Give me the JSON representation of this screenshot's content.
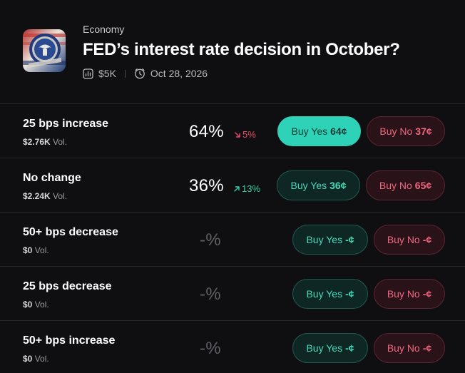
{
  "market": {
    "category": "Economy",
    "title": "FED’s interest rate decision in October?",
    "volume": "$5K",
    "date": "Oct 28, 2026"
  },
  "outcomes": [
    {
      "name": "25 bps increase",
      "volume": "$2.76K",
      "vol_suffix": "Vol.",
      "percent": "64%",
      "change": "5%",
      "change_dir": "down",
      "yes_label": "Buy Yes",
      "yes_price": "64¢",
      "no_label": "Buy No",
      "no_price": "37¢",
      "yes_active": true
    },
    {
      "name": "No change",
      "volume": "$2.24K",
      "vol_suffix": "Vol.",
      "percent": "36%",
      "change": "13%",
      "change_dir": "up",
      "yes_label": "Buy Yes",
      "yes_price": "36¢",
      "no_label": "Buy No",
      "no_price": "65¢",
      "yes_active": false
    },
    {
      "name": "50+ bps decrease",
      "volume": "$0",
      "vol_suffix": "Vol.",
      "percent": "-%",
      "yes_label": "Buy Yes",
      "yes_price": "-¢",
      "no_label": "Buy No",
      "no_price": "-¢",
      "yes_active": false
    },
    {
      "name": "25 bps decrease",
      "volume": "$0",
      "vol_suffix": "Vol.",
      "percent": "-%",
      "yes_label": "Buy Yes",
      "yes_price": "-¢",
      "no_label": "Buy No",
      "no_price": "-¢",
      "yes_active": false
    },
    {
      "name": "50+ bps increase",
      "volume": "$0",
      "vol_suffix": "Vol.",
      "percent": "-%",
      "yes_label": "Buy Yes",
      "yes_price": "-¢",
      "no_label": "Buy No",
      "no_price": "-¢",
      "yes_active": false
    }
  ],
  "icons": {
    "market_image": "federal-reserve-seal-icon",
    "volume": "bar-chart-icon",
    "date": "clock-icon",
    "change_down": "arrow-down-right-icon",
    "change_up": "arrow-up-right-icon"
  },
  "colors": {
    "background": "#0f0f11",
    "yes_accent": "#2ed3b7",
    "no_accent": "#f0667f",
    "down": "#ea4b6a",
    "up": "#2fd1a5"
  }
}
